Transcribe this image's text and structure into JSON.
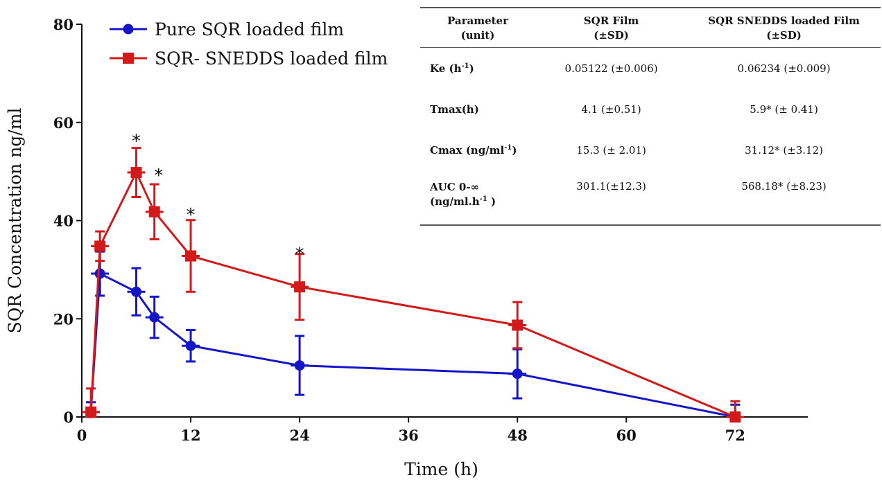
{
  "chart_data": {
    "type": "line",
    "xlabel": "Time (h)",
    "ylabel": "SQR Concentration ng/ml",
    "xlim": [
      0,
      80
    ],
    "ylim": [
      0,
      80
    ],
    "xticks": [
      0,
      12,
      24,
      36,
      48,
      60,
      72
    ],
    "yticks": [
      0,
      20,
      40,
      60,
      80
    ],
    "grid": false,
    "legend_position": "top-left",
    "series": [
      {
        "name": "Pure SQR loaded film",
        "color": "#1515c8",
        "marker": "circle",
        "x": [
          1,
          2,
          6,
          8,
          12,
          24,
          48,
          72
        ],
        "y": [
          1,
          29.2,
          25.5,
          20.3,
          14.5,
          10.5,
          8.8,
          0
        ],
        "error": [
          2,
          4.5,
          4.8,
          4.2,
          3.2,
          6,
          5,
          2.5
        ]
      },
      {
        "name": "SQR- SNEDDS loaded film",
        "color": "#d21a1a",
        "marker": "square",
        "x": [
          1,
          2,
          6,
          8,
          12,
          24,
          48,
          72
        ],
        "y": [
          1,
          34.8,
          49.8,
          41.8,
          32.8,
          26.5,
          18.7,
          0
        ],
        "error": [
          4.8,
          3,
          5,
          5.6,
          7.3,
          6.7,
          4.7,
          3.2
        ]
      }
    ],
    "annotations": [
      {
        "text": "*",
        "x": 6,
        "y": 57.5
      },
      {
        "text": "*",
        "x": 8,
        "y": 50.5
      },
      {
        "text": "*",
        "x": 12,
        "y": 42.5
      },
      {
        "text": "*",
        "x": 24,
        "y": 34.5
      }
    ]
  },
  "table": {
    "headers": [
      [
        "Parameter",
        "(unit)"
      ],
      [
        "SQR Film",
        "(±SD)"
      ],
      [
        "SQR SNEDDS loaded Film",
        "(±SD)"
      ]
    ],
    "rows": [
      {
        "parameter_base": "Ke (h",
        "parameter_sup": "-1",
        "parameter_tail": ")",
        "sqr_film": "0.05122 (±0.006)",
        "snedds_film": "0.06234 (±0.009)"
      },
      {
        "parameter_base": "Tmax(h)",
        "parameter_sup": "",
        "parameter_tail": "",
        "sqr_film": "4.1 (±0.51)",
        "snedds_film": "5.9* (± 0.41)"
      },
      {
        "parameter_base": "Cmax (ng/ml",
        "parameter_sup": "-1",
        "parameter_tail": ")",
        "sqr_film": "15.3 (± 2.01)",
        "snedds_film": "31.12* (±3.12)"
      }
    ],
    "auc_row": {
      "line1": "AUC 0-∞",
      "line2_base": "(ng/ml.h",
      "line2_sup": "-1",
      "line2_tail": " )",
      "sqr_film": "301.1(±12.3)",
      "snedds_film": "568.18* (±8.23)"
    }
  }
}
